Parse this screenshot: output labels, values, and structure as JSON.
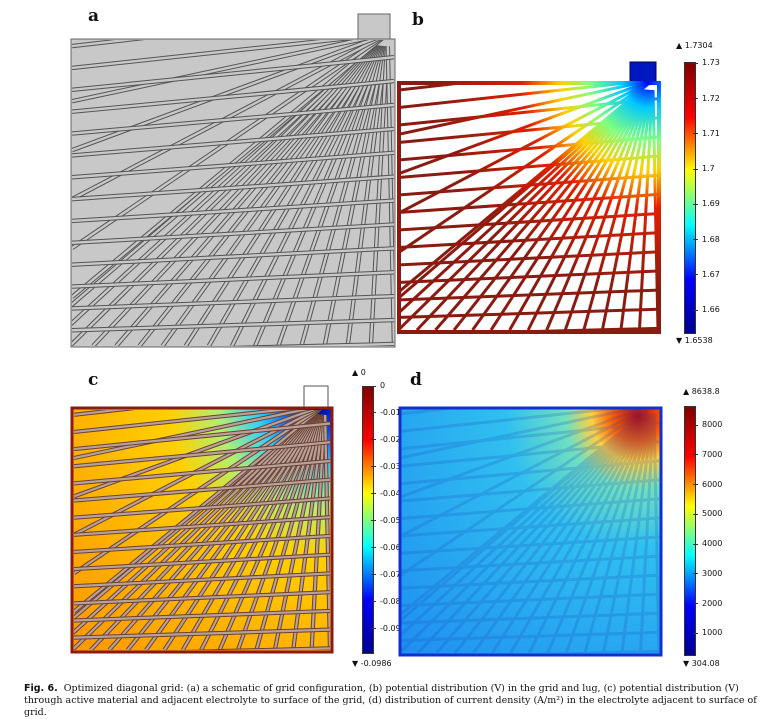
{
  "panels": {
    "a": {
      "label": "a"
    },
    "b": {
      "label": "b",
      "max_marker": "▲ 1.7304",
      "min_marker": "▼ 1.6538",
      "ticks": [
        "1.73",
        "1.72",
        "1.71",
        "1.7",
        "1.69",
        "1.68",
        "1.67",
        "1.66"
      ],
      "tick_values": [
        1.73,
        1.72,
        1.71,
        1.7,
        1.69,
        1.68,
        1.67,
        1.66
      ],
      "range": [
        1.6538,
        1.7304
      ]
    },
    "c": {
      "label": "c",
      "max_marker": "▲ 0",
      "min_marker": "▼ -0.0986",
      "ticks": [
        "0",
        "-0.01",
        "-0.02",
        "-0.03",
        "-0.04",
        "-0.05",
        "-0.06",
        "-0.07",
        "-0.08",
        "-0.09"
      ],
      "tick_values": [
        0,
        -0.01,
        -0.02,
        -0.03,
        -0.04,
        -0.05,
        -0.06,
        -0.07,
        -0.08,
        -0.09
      ],
      "range": [
        -0.0986,
        0
      ]
    },
    "d": {
      "label": "d",
      "max_marker": "▲ 8638.8",
      "min_marker": "▼ 304.08",
      "ticks": [
        "8000",
        "7000",
        "6000",
        "5000",
        "4000",
        "3000",
        "2000",
        "1000"
      ],
      "tick_values": [
        8000,
        7000,
        6000,
        5000,
        4000,
        3000,
        2000,
        1000
      ],
      "range": [
        304.08,
        8638.8
      ]
    }
  },
  "caption": {
    "fig_label": "Fig. 6.",
    "text": "Optimized diagonal grid: (a) a schematic of grid configuration, (b) potential distribution (V) in the grid and lug, (c) potential distribution (V) through active material and adjacent electrolyte to surface of the grid, (d) distribution of current density (A/m²) in the electrolyte adjacent to surface of grid."
  },
  "colors": {
    "grid_gray": "#c8c8c8",
    "grid_dark_red": "#8b1a10",
    "jet": [
      "#00008f",
      "#0000ff",
      "#00ffff",
      "#ffff00",
      "#ff0000",
      "#800000"
    ]
  }
}
